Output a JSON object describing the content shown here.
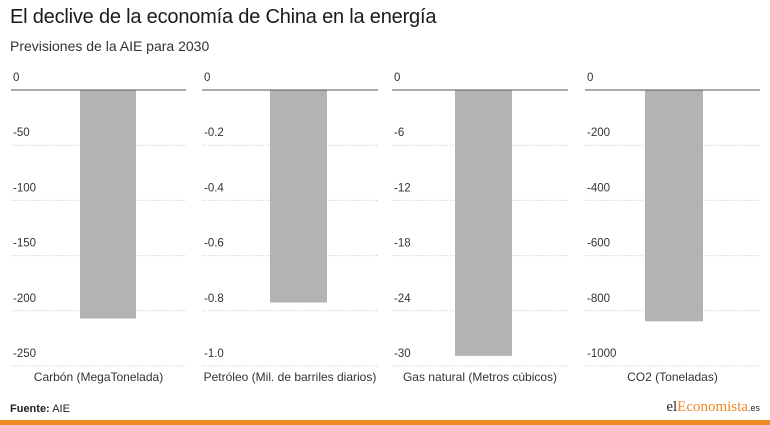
{
  "title": "El declive de la economía de China en la energía",
  "subtitle": "Previsiones de la AIE para 2030",
  "source": {
    "label": "Fuente:",
    "value": "AIE"
  },
  "logo": {
    "part1": "el",
    "part2": "Economista",
    "part3": ".es"
  },
  "colors": {
    "bar": "#b3b3b3",
    "grid": "#d4d4d4",
    "baseline": "#555555",
    "accent": "#f08a24"
  },
  "chart_data": [
    {
      "type": "bar",
      "categories": [
        "Carbón (MegaTonelada)"
      ],
      "values": [
        -207
      ],
      "ylim": [
        -250,
        0
      ],
      "yticks": [
        0,
        -50,
        -100,
        -150,
        -200,
        -250
      ],
      "ytick_labels": [
        "0",
        "-50",
        "-100",
        "-150",
        "-200",
        "-250"
      ],
      "grid": true
    },
    {
      "type": "bar",
      "categories": [
        "Petróleo (Mil. de barriles diarios)"
      ],
      "values": [
        -0.77
      ],
      "ylim": [
        -1.0,
        0
      ],
      "yticks": [
        0,
        -0.2,
        -0.4,
        -0.6,
        -0.8,
        -1.0
      ],
      "ytick_labels": [
        "0",
        "-0.2",
        "-0.4",
        "-0.6",
        "-0.8",
        "-1.0"
      ],
      "grid": true
    },
    {
      "type": "bar",
      "categories": [
        "Gas natural (Metros cúbicos)"
      ],
      "values": [
        -28.9
      ],
      "ylim": [
        -30,
        0
      ],
      "yticks": [
        0,
        -6,
        -12,
        -18,
        -24,
        -30
      ],
      "ytick_labels": [
        "0",
        "-6",
        "-12",
        "-18",
        "-24",
        "-30"
      ],
      "grid": true
    },
    {
      "type": "bar",
      "categories": [
        "CO2 (Toneladas)"
      ],
      "values": [
        -838
      ],
      "ylim": [
        -1000,
        0
      ],
      "yticks": [
        0,
        -200,
        -400,
        -600,
        -800,
        -1000
      ],
      "ytick_labels": [
        "0",
        "-200",
        "-400",
        "-600",
        "-800",
        "-1000"
      ],
      "grid": true
    }
  ]
}
